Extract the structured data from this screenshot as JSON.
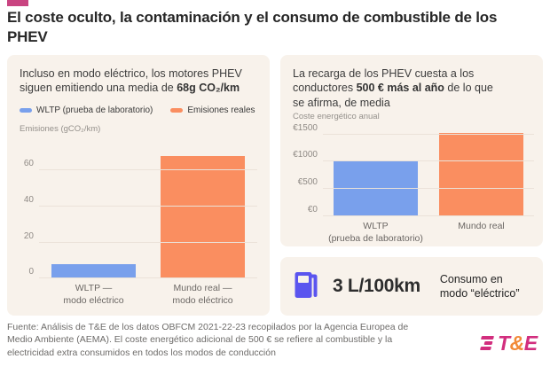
{
  "page": {
    "bg": "#ffffff",
    "accent_color": "#C94481"
  },
  "title": "El coste oculto, la contaminación y el consumo de combustible de los\nPHEV",
  "left_panel": {
    "headline": {
      "pre": "Incluso en modo eléctrico, los motores PHEV\nsiguen emitiendo una media de ",
      "bold": "68g CO₂/km",
      "post": ""
    },
    "legend": [
      {
        "label": "WLTP (prueba de laboratorio)",
        "color": "#79A0EC"
      },
      {
        "label": "Emisiones reales",
        "color": "#FA8E60"
      }
    ],
    "axis_title": "Emisiones (gCO₂/km)"
  },
  "right_panel": {
    "headline": {
      "pre": "La recarga de los PHEV cuesta a los\nconductores ",
      "bold": "500 € más al año",
      "post": " de lo que\nse afirma, de media"
    },
    "axis_title": "Coste energético anual"
  },
  "consumption_card": {
    "icon": "fuel-pump-icon",
    "icon_color": "#5B55EF",
    "value": "3 L/100km",
    "label": "Consumo en\nmodo “eléctrico”"
  },
  "footer": "Fuente: Análisis de T&E de los datos OBFCM 2021-22-23 recopilados por la Agencia Europea de\nMedio Ambiente (AEMA). El coste energético adicional de 500 € se refiere al combustible y la\nelectricidad extra consumidos en todos los modos de conducción",
  "logo": {
    "t": "T",
    "amp": "&",
    "e": "E",
    "pink": "#D22E7E",
    "orange": "#F28A38"
  },
  "chart_data": [
    {
      "type": "bar",
      "title": "Incluso en modo eléctrico, los motores PHEV siguen emitiendo una media de 68g CO₂/km",
      "ylabel": "Emisiones (gCO₂/km)",
      "categories": [
        "WLTP —\nmodo eléctrico",
        "Mundo real —\nmodo eléctrico"
      ],
      "values": [
        8,
        68
      ],
      "colors": [
        "#79A0EC",
        "#FA8E60"
      ],
      "legend": [
        "WLTP (prueba de laboratorio)",
        "Emisiones reales"
      ],
      "yticks": [
        0,
        20,
        40,
        60
      ],
      "ytick_prefix": "",
      "ylim": [
        0,
        78
      ],
      "grid": true,
      "legend_position": "top"
    },
    {
      "type": "bar",
      "title": "La recarga de los PHEV cuesta a los conductores 500 € más al año de lo que se afirma, de media",
      "ylabel": "Coste energético anual",
      "categories": [
        "WLTP\n(prueba de laboratorio)",
        "Mundo real"
      ],
      "values": [
        1030,
        1530
      ],
      "colors": [
        "#79A0EC",
        "#FA8E60"
      ],
      "yticks": [
        0,
        500,
        1000,
        1500
      ],
      "ytick_prefix": "€",
      "ylim": [
        0,
        1560
      ],
      "grid": true
    }
  ]
}
